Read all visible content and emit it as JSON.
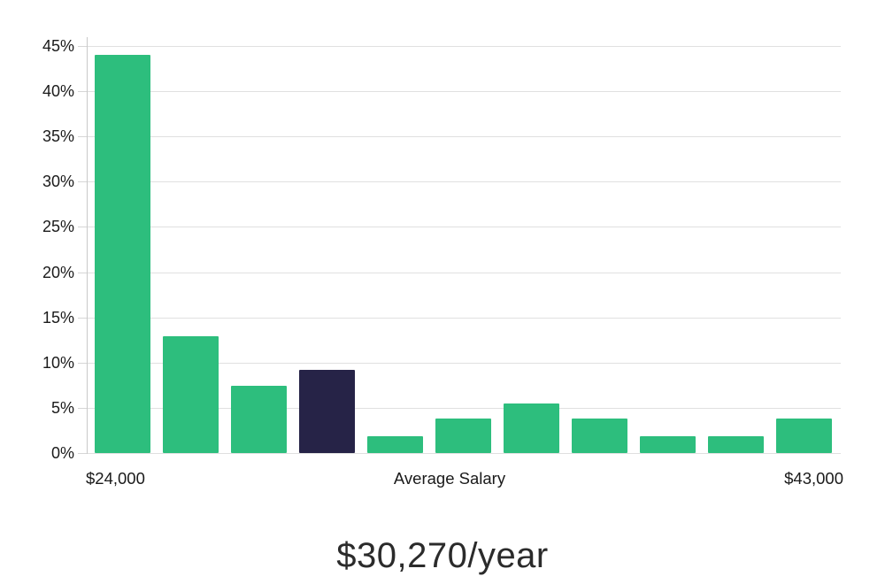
{
  "chart_data": {
    "type": "bar",
    "values": [
      44,
      12.9,
      7.4,
      9.2,
      1.9,
      3.8,
      5.5,
      3.8,
      1.9,
      1.9,
      3.8
    ],
    "value_unit": "%",
    "highlighted_index": 3,
    "y_ticks": [
      0,
      5,
      10,
      15,
      20,
      25,
      30,
      35,
      40,
      45
    ],
    "y_tick_suffix": "%",
    "ylim": [
      0,
      45
    ],
    "grid": true,
    "legend": "none",
    "x_axis_labels": {
      "min": "$24,000",
      "center": "Average Salary",
      "max": "$43,000"
    },
    "title": "$30,270/year",
    "colors": {
      "bar": "#2dbe7d",
      "highlighted_bar": "#262347",
      "gridline": "#e0e0e0",
      "axis": "#c9c9c9",
      "text": "#1a1a1a"
    }
  }
}
